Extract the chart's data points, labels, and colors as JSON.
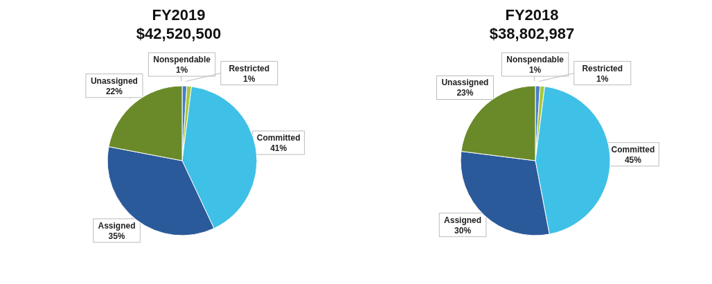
{
  "chart_data": [
    {
      "type": "pie",
      "title": "FY2019",
      "subtitle": "$42,520,500",
      "categories": [
        "Nonspendable",
        "Restricted",
        "Committed",
        "Assigned",
        "Unassigned"
      ],
      "values": [
        1,
        1,
        41,
        35,
        22
      ],
      "value_labels": [
        "1%",
        "1%",
        "41%",
        "35%",
        "22%"
      ],
      "colors": [
        "#4a7fc8",
        "#a8c83c",
        "#3fc0e6",
        "#2b5a9a",
        "#6a8a2a"
      ],
      "legend": false
    },
    {
      "type": "pie",
      "title": "FY2018",
      "subtitle": "$38,802,987",
      "categories": [
        "Nonspendable",
        "Restricted",
        "Committed",
        "Assigned",
        "Unassigned"
      ],
      "values": [
        1,
        1,
        45,
        30,
        23
      ],
      "value_labels": [
        "1%",
        "1%",
        "45%",
        "30%",
        "23%"
      ],
      "colors": [
        "#4a7fc8",
        "#a8c83c",
        "#3fc0e6",
        "#2b5a9a",
        "#6a8a2a"
      ],
      "legend": false
    }
  ]
}
